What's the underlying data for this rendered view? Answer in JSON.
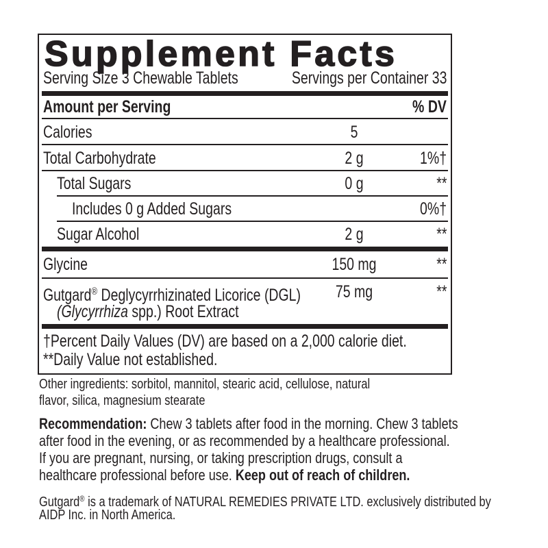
{
  "panel": {
    "title": "Supplement Facts",
    "serving_size": "Serving Size 3 Chewable Tablets",
    "servings_per_container": "Servings per Container 33",
    "amount_header": "Amount per Serving",
    "dv_header": "% DV",
    "rows": [
      {
        "name": "Calories",
        "amount": "5",
        "dv": ""
      },
      {
        "name": "Total Carbohydrate",
        "amount": "2 g",
        "dv": "1%†"
      },
      {
        "name": "Total Sugars",
        "amount": "0 g",
        "dv": "**"
      },
      {
        "name": "Includes 0 g Added Sugars",
        "amount": "",
        "dv": "0%†"
      },
      {
        "name": "Sugar Alcohol",
        "amount": "2 g",
        "dv": "**"
      },
      {
        "name": "Glycine",
        "amount": "150 mg",
        "dv": "**"
      },
      {
        "name": "Gutgard",
        "reg": "®",
        "name_rest": " Deglycyrrhizinated Licorice (DGL)",
        "name_line2_italic": "(Glycyrrhiza",
        "name_line2_rest": " spp.) Root Extract",
        "amount": "75 mg",
        "dv": "**"
      }
    ],
    "footnote_1": "†Percent Daily Values (DV) are based on a 2,000 calorie diet.",
    "footnote_2": "**Daily Value not established."
  },
  "other_ingredients": {
    "line1": "Other ingredients: sorbitol, mannitol, stearic acid, cellulose, natural",
    "line2": "flavor, silica, magnesium stearate"
  },
  "recommendation": {
    "label": "Recommendation:",
    "line1": " Chew 3 tablets after food in the morning. Chew 3 tablets",
    "line2": "after food in the evening, or as recommended by a healthcare professional.",
    "line3": "If you are pregnant, nursing, or taking prescription drugs, consult a",
    "line4": "healthcare professional before use. ",
    "warning": "Keep out of reach of children."
  },
  "trademark": {
    "brand": "Gutgard",
    "reg": "®",
    "line1": " is a trademark of NATURAL REMEDIES PRIVATE LTD. exclusively distributed by",
    "line2": "AIDP Inc. in North America."
  }
}
